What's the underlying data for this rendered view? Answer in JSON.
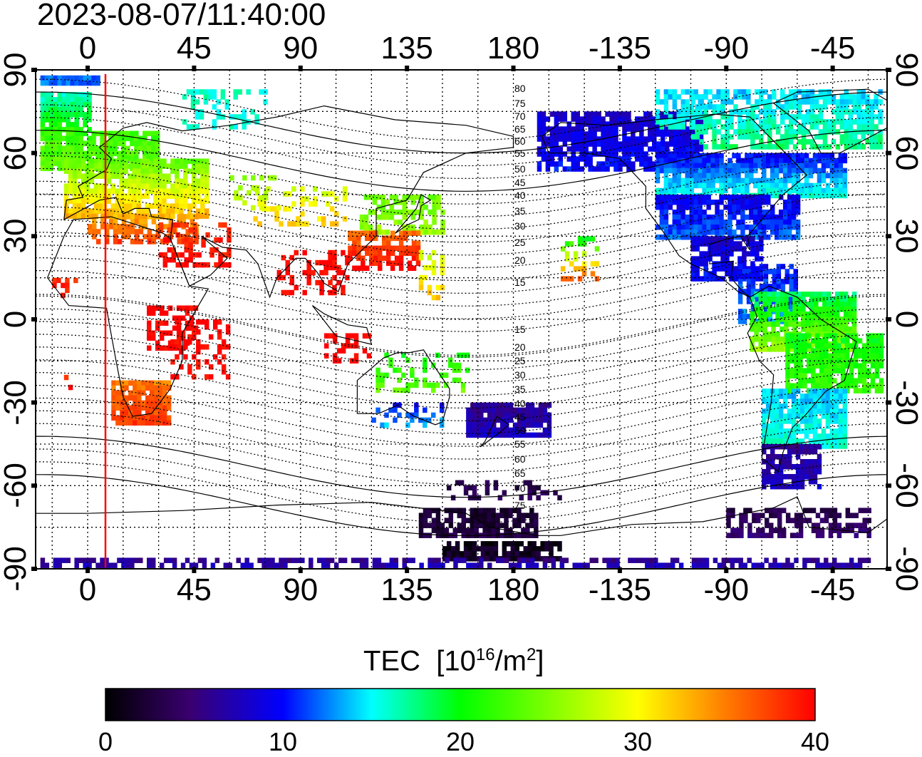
{
  "title": "2023-08-07/11:40:00",
  "x_ticks_top": [
    "0",
    "45",
    "90",
    "135",
    "180",
    "-135",
    "-90",
    "-45"
  ],
  "x_ticks_bottom": [
    "0",
    "45",
    "90",
    "135",
    "180",
    "-135",
    "-90",
    "-45"
  ],
  "y_ticks_left": [
    "90",
    "60",
    "30",
    "0",
    "-30",
    "-60",
    "-90"
  ],
  "y_ticks_right": [
    "90",
    "60",
    "30",
    "0",
    "-30",
    "-60",
    "-90"
  ],
  "contour_labels_north": [
    "80",
    "75",
    "70",
    "65",
    "60",
    "55",
    "50",
    "45",
    "40",
    "35",
    "30",
    "25",
    "20",
    "15"
  ],
  "contour_labels_south": [
    "15",
    "20",
    "25",
    "30",
    "35",
    "40",
    "45",
    "50",
    "55",
    "60",
    "65",
    "70",
    "75"
  ],
  "colorbar": {
    "title": "TEC",
    "unit_base": "[10",
    "unit_exp": "16",
    "unit_mid": "/m",
    "unit_exp2": "2",
    "unit_close": "]",
    "ticks": [
      "0",
      "10",
      "20",
      "30",
      "40"
    ],
    "range": [
      0,
      40
    ]
  },
  "colors": {
    "terminator": "#ff0000",
    "frame": "#000000"
  },
  "map_projection": "equirectangular, longitude -22 to 338 (centered 158), latitude -90 to 90"
}
